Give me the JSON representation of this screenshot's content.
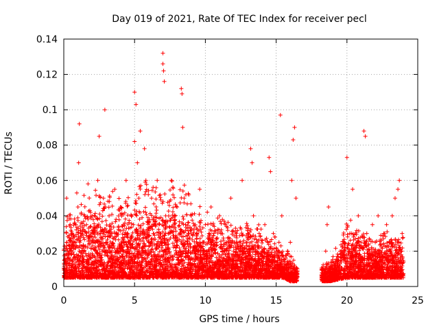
{
  "chart_data": {
    "type": "scatter",
    "title": "Day 019 of 2021, Rate Of TEC Index for receiver pecl",
    "xlabel": "GPS time / hours",
    "ylabel": "ROTI / TECUs",
    "xlim": [
      0,
      25
    ],
    "ylim": [
      0,
      0.14
    ],
    "xticks": [
      "0",
      "5",
      "10",
      "15",
      "20",
      "25"
    ],
    "yticks": [
      "0",
      "0.02",
      "0.04",
      "0.06",
      "0.08",
      "0.1",
      "0.12",
      "0.14"
    ],
    "grid": true,
    "marker": "plus",
    "color": "#ff0000",
    "x": [
      0.05,
      0.2,
      0.4,
      0.6,
      0.8,
      1.0,
      1.05,
      1.1,
      1.2,
      1.4,
      1.6,
      1.8,
      2.0,
      2.2,
      2.4,
      2.5,
      2.6,
      2.8,
      2.9,
      3.0,
      3.2,
      3.4,
      3.6,
      3.8,
      4.0,
      4.2,
      4.4,
      4.6,
      4.8,
      5.0,
      5.0,
      5.1,
      5.2,
      5.2,
      5.3,
      5.4,
      5.6,
      5.7,
      5.8,
      6.0,
      6.2,
      6.4,
      6.6,
      6.8,
      7.0,
      7.0,
      7.05,
      7.1,
      7.2,
      7.4,
      7.6,
      7.8,
      8.0,
      8.2,
      8.3,
      8.35,
      8.4,
      8.5,
      8.6,
      8.8,
      9.0,
      9.2,
      9.4,
      9.6,
      9.8,
      10.0,
      10.2,
      10.4,
      10.6,
      10.8,
      11.0,
      11.2,
      11.4,
      11.6,
      11.8,
      12.0,
      12.2,
      12.4,
      12.6,
      12.8,
      13.0,
      13.2,
      13.3,
      13.4,
      13.6,
      13.8,
      14.0,
      14.2,
      14.4,
      14.5,
      14.6,
      14.8,
      15.0,
      15.2,
      15.3,
      15.4,
      15.6,
      15.8,
      16.0,
      16.1,
      16.2,
      16.3,
      16.4,
      16.5,
      18.4,
      18.5,
      18.6,
      18.7,
      20.0,
      20.0,
      20.2,
      20.4,
      20.6,
      20.8,
      21.0,
      21.2,
      21.3,
      21.4,
      21.6,
      21.8,
      22.0,
      22.2,
      22.4,
      22.6,
      22.8,
      23.0,
      23.2,
      23.4,
      23.6,
      23.7,
      23.8,
      23.9
    ],
    "y": [
      0.015,
      0.05,
      0.02,
      0.03,
      0.025,
      0.045,
      0.07,
      0.092,
      0.03,
      0.02,
      0.035,
      0.028,
      0.04,
      0.022,
      0.06,
      0.085,
      0.03,
      0.05,
      0.1,
      0.025,
      0.04,
      0.03,
      0.055,
      0.02,
      0.045,
      0.035,
      0.06,
      0.025,
      0.04,
      0.11,
      0.082,
      0.103,
      0.03,
      0.07,
      0.05,
      0.088,
      0.03,
      0.078,
      0.06,
      0.025,
      0.05,
      0.035,
      0.06,
      0.03,
      0.132,
      0.126,
      0.122,
      0.116,
      0.04,
      0.03,
      0.06,
      0.035,
      0.045,
      0.02,
      0.112,
      0.109,
      0.09,
      0.05,
      0.035,
      0.03,
      0.04,
      0.02,
      0.03,
      0.055,
      0.025,
      0.035,
      0.02,
      0.045,
      0.03,
      0.025,
      0.04,
      0.02,
      0.035,
      0.025,
      0.05,
      0.02,
      0.03,
      0.025,
      0.06,
      0.02,
      0.03,
      0.078,
      0.07,
      0.04,
      0.025,
      0.03,
      0.02,
      0.035,
      0.025,
      0.073,
      0.065,
      0.03,
      0.02,
      0.025,
      0.097,
      0.04,
      0.015,
      0.02,
      0.025,
      0.06,
      0.083,
      0.09,
      0.05,
      0.01,
      0.005,
      0.02,
      0.035,
      0.045,
      0.01,
      0.073,
      0.03,
      0.055,
      0.02,
      0.04,
      0.025,
      0.088,
      0.085,
      0.03,
      0.02,
      0.035,
      0.025,
      0.04,
      0.02,
      0.03,
      0.035,
      0.025,
      0.04,
      0.05,
      0.055,
      0.06,
      0.02,
      0.03
    ],
    "density_band": [
      [
        0.0,
        0.005,
        0.04
      ],
      [
        0.5,
        0.005,
        0.045
      ],
      [
        1.0,
        0.005,
        0.055
      ],
      [
        2.0,
        0.005,
        0.06
      ],
      [
        3.0,
        0.005,
        0.06
      ],
      [
        4.0,
        0.005,
        0.055
      ],
      [
        5.0,
        0.005,
        0.06
      ],
      [
        6.0,
        0.005,
        0.065
      ],
      [
        7.0,
        0.005,
        0.06
      ],
      [
        8.0,
        0.005,
        0.065
      ],
      [
        9.0,
        0.005,
        0.055
      ],
      [
        10.0,
        0.005,
        0.045
      ],
      [
        11.0,
        0.005,
        0.04
      ],
      [
        12.0,
        0.005,
        0.04
      ],
      [
        13.0,
        0.005,
        0.04
      ],
      [
        14.0,
        0.005,
        0.035
      ],
      [
        15.0,
        0.005,
        0.03
      ],
      [
        15.5,
        0.005,
        0.025
      ],
      [
        16.0,
        0.003,
        0.02
      ],
      [
        16.5,
        0.003,
        0.015
      ],
      [
        18.2,
        0.003,
        0.015
      ],
      [
        18.8,
        0.003,
        0.015
      ],
      [
        20.0,
        0.005,
        0.04
      ],
      [
        21.0,
        0.005,
        0.035
      ],
      [
        22.0,
        0.005,
        0.03
      ],
      [
        23.0,
        0.005,
        0.035
      ],
      [
        24.0,
        0.005,
        0.035
      ]
    ]
  }
}
